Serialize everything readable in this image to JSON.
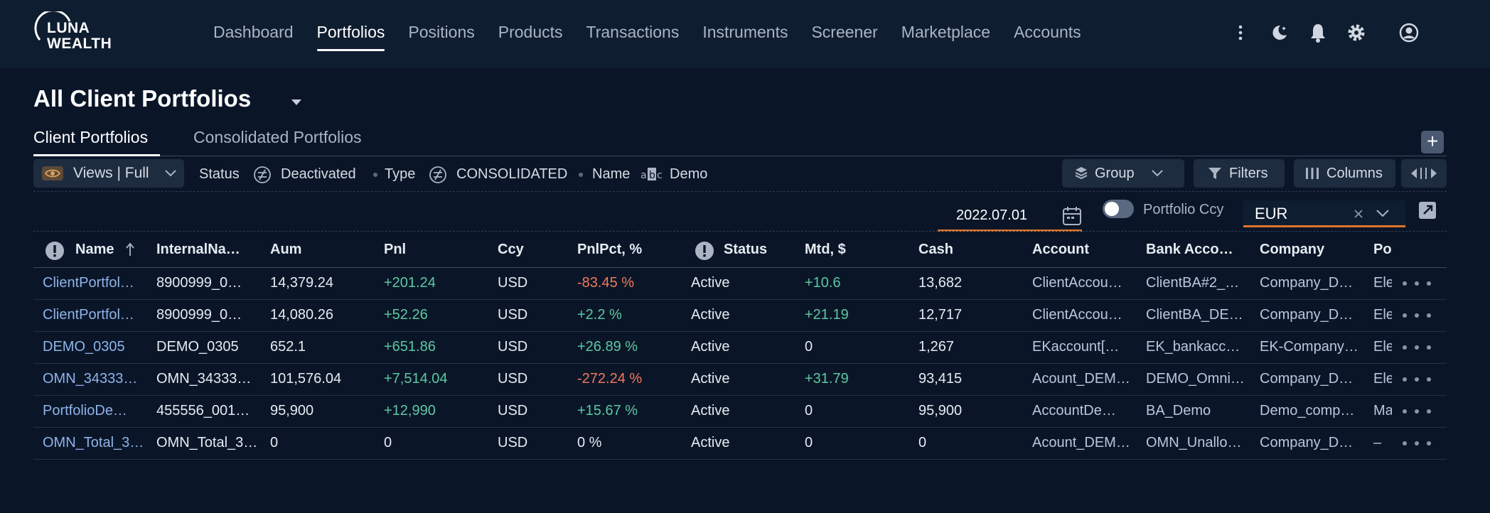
{
  "brand": {
    "line1": "LUNA",
    "line2": "WEALTH"
  },
  "nav": [
    {
      "label": "Dashboard",
      "active": false
    },
    {
      "label": "Portfolios",
      "active": true
    },
    {
      "label": "Positions",
      "active": false
    },
    {
      "label": "Products",
      "active": false
    },
    {
      "label": "Transactions",
      "active": false
    },
    {
      "label": "Instruments",
      "active": false
    },
    {
      "label": "Screener",
      "active": false
    },
    {
      "label": "Marketplace",
      "active": false
    },
    {
      "label": "Accounts",
      "active": false
    }
  ],
  "page": {
    "title": "All Client Portfolios"
  },
  "tabs": [
    {
      "label": "Client Portfolios",
      "active": true
    },
    {
      "label": "Consolidated Portfolios",
      "active": false
    }
  ],
  "toolbar": {
    "views_label": "Views | Full",
    "filters": [
      {
        "label": "Status",
        "value": "Deactivated",
        "icon": "not-equal-icon"
      },
      {
        "label": "Type",
        "value": "CONSOLIDATED",
        "icon": "not-equal-icon"
      },
      {
        "label": "Name",
        "value": "Demo",
        "icon": "abc-text-icon"
      }
    ],
    "group_label": "Group",
    "filters_label": "Filters",
    "columns_label": "Columns"
  },
  "controls": {
    "date": "2022.07.01",
    "portfolio_ccy_label": "Portfolio Ccy",
    "ccy_value": "EUR"
  },
  "table": {
    "columns": [
      "Name",
      "InternalNa…",
      "Aum",
      "Pnl",
      "Ccy",
      "PnlPct, %",
      "Status",
      "Mtd, $",
      "Cash",
      "Account",
      "Bank Acco…",
      "Company",
      "Po"
    ],
    "rows": [
      [
        "ClientPortfol…",
        "8900999_0…",
        "14,379.24",
        "+201.24",
        "USD",
        "-83.45 %",
        "Active",
        "+10.6",
        "13,682",
        "ClientAccou…",
        "ClientBA#2_…",
        "Company_D…",
        "Ele"
      ],
      [
        "ClientPortfol…",
        "8900999_0…",
        "14,080.26",
        "+52.26",
        "USD",
        "+2.2 %",
        "Active",
        "+21.19",
        "12,717",
        "ClientAccou…",
        "ClientBA_DE…",
        "Company_D…",
        "Ele"
      ],
      [
        "DEMO_0305",
        "DEMO_0305",
        "652.1",
        "+651.86",
        "USD",
        "+26.89 %",
        "Active",
        "0",
        "1,267",
        "EKaccount[…",
        "EK_bankacc…",
        "EK-Company…",
        "Ele"
      ],
      [
        "OMN_34333…",
        "OMN_34333…",
        "101,576.04",
        "+7,514.04",
        "USD",
        "-272.24 %",
        "Active",
        "+31.79",
        "93,415",
        "Acount_DEM…",
        "DEMO_Omni…",
        "Company_D…",
        "Ele"
      ],
      [
        "PortfolioDe…",
        "455556_001…",
        "95,900",
        "+12,990",
        "USD",
        "+15.67 %",
        "Active",
        "0",
        "95,900",
        "AccountDe…",
        "BA_Demo",
        "Demo_comp…",
        "Ma"
      ],
      [
        "OMN_Total_3…",
        "OMN_Total_3…",
        "0",
        "0",
        "USD",
        "0 %",
        "Active",
        "0",
        "0",
        "Acount_DEM…",
        "OMN_Unallo…",
        "Company_D…",
        "–"
      ]
    ]
  },
  "colors": {
    "accent": "#e0742a",
    "positive": "#5ec7a1",
    "negative": "#f2785c",
    "link": "#8fb3e8"
  }
}
